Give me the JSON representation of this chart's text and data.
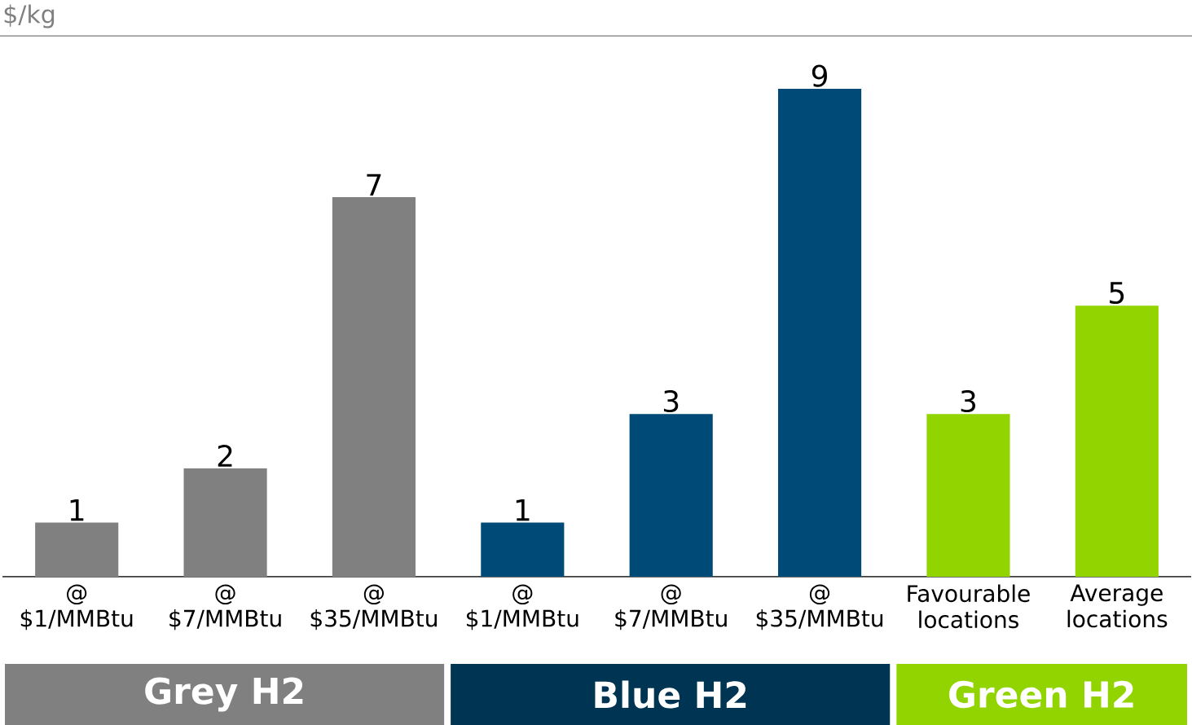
{
  "chart_data": {
    "type": "bar",
    "ylabel": "$/kg",
    "categories": [
      "@ $1/MMBtu",
      "@ $7/MMBtu",
      "@ $35/MMBtu",
      "@ $1/MMBtu",
      "@ $7/MMBtu",
      "@ $35/MMBtu",
      "Favourable locations",
      "Average locations"
    ],
    "values": [
      1,
      2,
      7,
      1,
      3,
      9,
      3,
      5
    ],
    "data_labels": true,
    "colors": [
      "#808080",
      "#808080",
      "#808080",
      "#004a77",
      "#004a77",
      "#004a77",
      "#92d400",
      "#92d400"
    ],
    "annotations": [
      "Grey H2",
      "Blue H2",
      "Green H2"
    ]
  }
}
